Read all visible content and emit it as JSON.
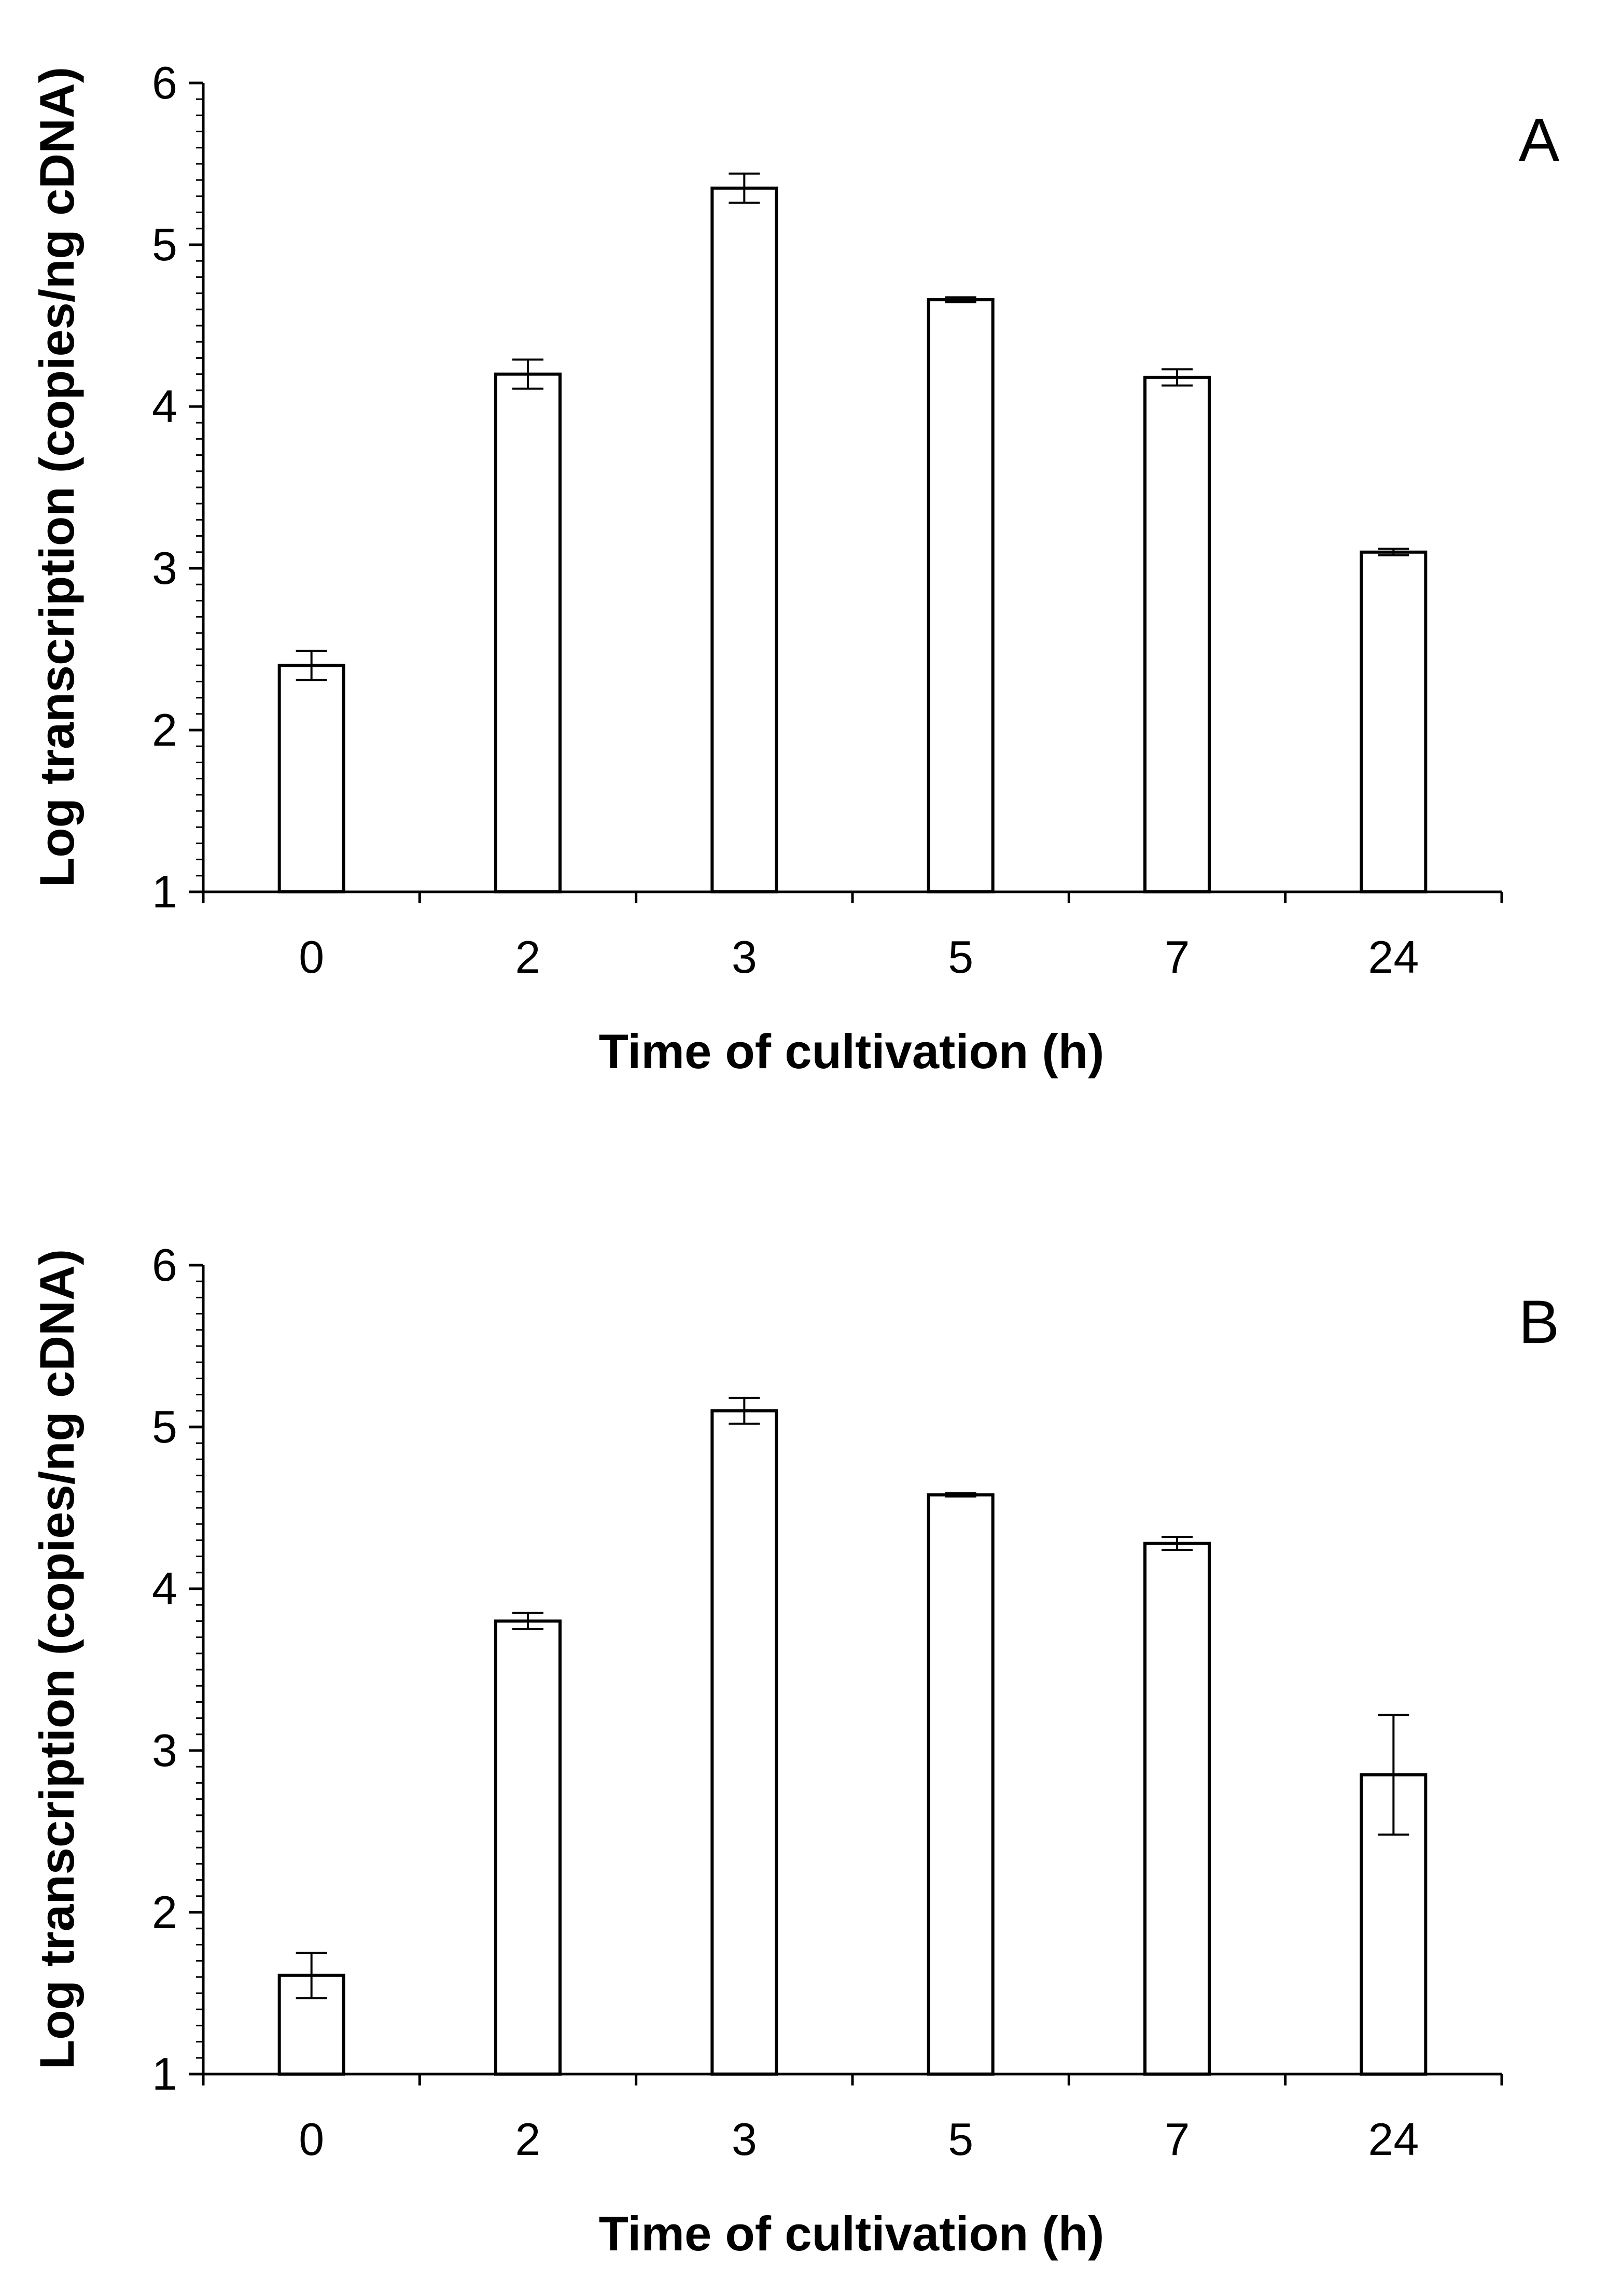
{
  "chart_data": [
    {
      "type": "bar",
      "panel_label": "A",
      "categories": [
        "0",
        "2",
        "3",
        "5",
        "7",
        "24"
      ],
      "values": [
        2.4,
        4.2,
        5.35,
        4.66,
        4.18,
        3.1
      ],
      "errors": [
        0.09,
        0.09,
        0.09,
        0.015,
        0.05,
        0.02
      ],
      "xlabel": "Time of cultivation (h)",
      "ylabel": "Log transcription (copies/ng cDNA)",
      "ylim": [
        1,
        6
      ],
      "yticks": [
        "1",
        "2",
        "3",
        "4",
        "5",
        "6"
      ]
    },
    {
      "type": "bar",
      "panel_label": "B",
      "categories": [
        "0",
        "2",
        "3",
        "5",
        "7",
        "24"
      ],
      "values": [
        1.61,
        3.8,
        5.1,
        4.58,
        4.28,
        2.85
      ],
      "errors": [
        0.14,
        0.05,
        0.08,
        0.01,
        0.04,
        0.37
      ],
      "xlabel": "Time of cultivation (h)",
      "ylabel": "Log transcription (copies/ng cDNA)",
      "ylim": [
        1,
        6
      ],
      "yticks": [
        "1",
        "2",
        "3",
        "4",
        "5",
        "6"
      ]
    }
  ],
  "colors": {
    "bar_fill": "#ffffff",
    "stroke": "#000000"
  }
}
